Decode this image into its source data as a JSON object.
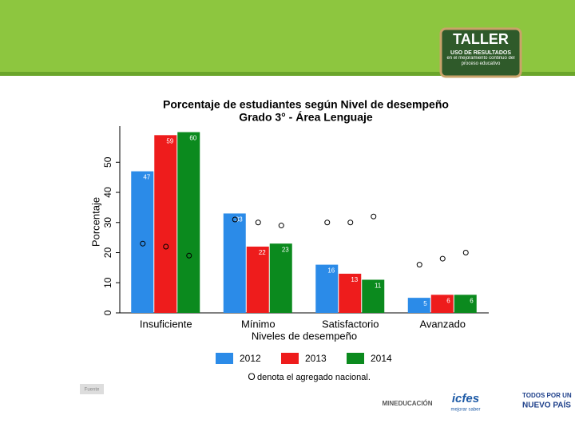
{
  "header": {
    "title": "TALLER",
    "subtitle": "USO DE RESULTADOS",
    "tagline": "en el mejoramiento continuo del proceso educativo"
  },
  "footer": {
    "source": "Fuente",
    "logos": [
      "MINEDUCACIÓN",
      "icfes",
      "mejorar saber",
      "TODOS POR UN",
      "NUEVO PAÍS"
    ]
  },
  "chart_data": {
    "type": "bar",
    "title": "Porcentaje de estudiantes según Nivel de desempeño",
    "subtitle": "Grado 3° - Área  Lenguaje",
    "y_label": "Porcentaje",
    "x_label": "Niveles de desempeño",
    "categories": [
      "Insuficiente",
      "Mínimo",
      "Satisfactorio",
      "Avanzado"
    ],
    "series": [
      {
        "name": "2012",
        "color": "#2b8be8",
        "values": [
          47,
          33,
          16,
          5
        ],
        "national_values": [
          23,
          31,
          30,
          16
        ]
      },
      {
        "name": "2013",
        "color": "#ee1c1c",
        "values": [
          59,
          22,
          13,
          6
        ],
        "national_values": [
          22,
          30,
          30,
          18
        ]
      },
      {
        "name": "2014",
        "color": "#0b8a1e",
        "values": [
          60,
          23,
          11,
          6
        ],
        "national_values": [
          19,
          29,
          32,
          20
        ]
      }
    ],
    "ylim": [
      0,
      62
    ],
    "yticks": [
      0,
      10,
      20,
      30,
      40,
      50
    ],
    "grid": false,
    "note_marker": "O",
    "note": "denota el agregado nacional."
  }
}
